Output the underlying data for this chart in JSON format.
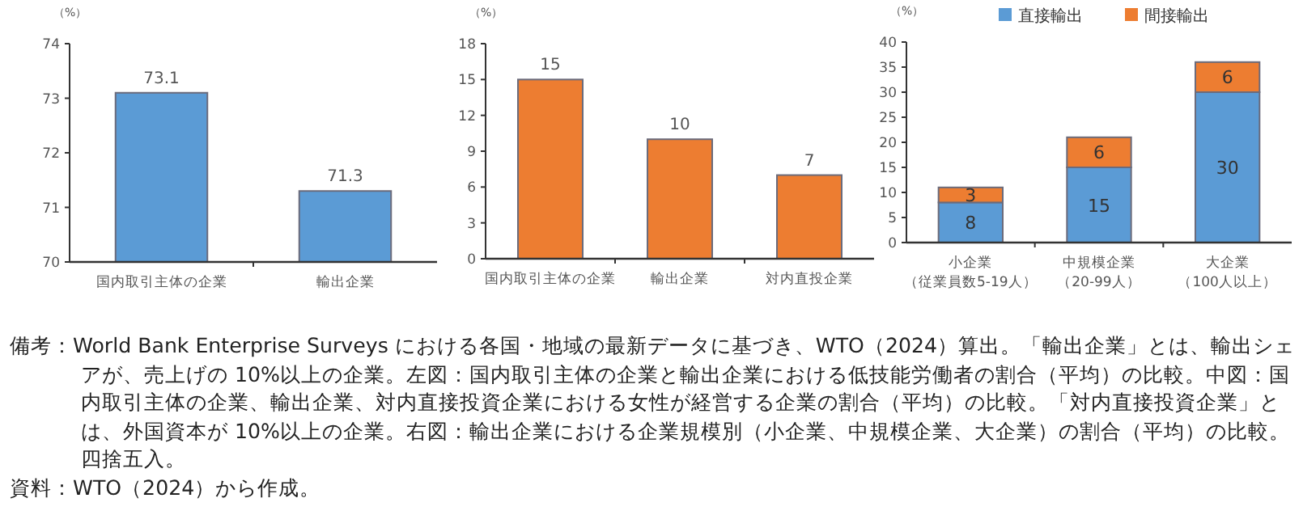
{
  "chart_data": [
    {
      "type": "bar",
      "ylabel": "（%）",
      "categories": [
        "国内取引主体の企業",
        "輸出企業"
      ],
      "values": [
        73.1,
        71.3
      ],
      "color": "#5b9bd5",
      "ylim": [
        70,
        74
      ],
      "yticks": [
        70,
        71,
        72,
        73,
        74
      ],
      "data_labels": true,
      "grid": false,
      "legend": false
    },
    {
      "type": "bar",
      "ylabel": "（%）",
      "categories": [
        "国内取引主体の企業",
        "輸出企業",
        "対内直投企業"
      ],
      "values": [
        15,
        10,
        7
      ],
      "color": "#ed7d31",
      "ylim": [
        0,
        18
      ],
      "yticks": [
        0,
        3,
        6,
        9,
        12,
        15,
        18
      ],
      "data_labels": true,
      "grid": false,
      "legend": false
    },
    {
      "type": "bar",
      "ylabel": "（%）",
      "stacked": true,
      "categories": [
        "小企業（従業員数5-19人）",
        "中規模企業（20-99人）",
        "大企業（100人以上）"
      ],
      "series": [
        {
          "name": "直接輸出",
          "color": "#5b9bd5",
          "values": [
            8,
            15,
            30
          ]
        },
        {
          "name": "間接輸出",
          "color": "#ed7d31",
          "values": [
            3,
            6,
            6
          ]
        }
      ],
      "ylim": [
        0,
        40
      ],
      "yticks": [
        0,
        5,
        10,
        15,
        20,
        25,
        30,
        35,
        40
      ],
      "data_labels": true,
      "grid": false,
      "legend": "top"
    },
    {
      "type": "other",
      "annotations": [
        "備考：World Bank Enterprise Surveys における各国・地域の最新データに基づき、WTO（2024）算出。「輸出企業」とは、輸出シェアが、売上げの 10%以上の企業。左図：国内取引主体の企業と輸出企業における低技能労働者の割合（平均）の比較。中図：国内取引主体の企業、輸出企業、対内直接投資企業における女性が経営する企業の割合（平均）の比較。「対内直接投資企業」とは、外国資本が 10%以上の企業。右図：輸出企業における企業規模別（小企業、中規模企業、大企業）の割合（平均）の比較。四捨五入。",
        "資料：WTO（2024）から作成。"
      ]
    }
  ]
}
